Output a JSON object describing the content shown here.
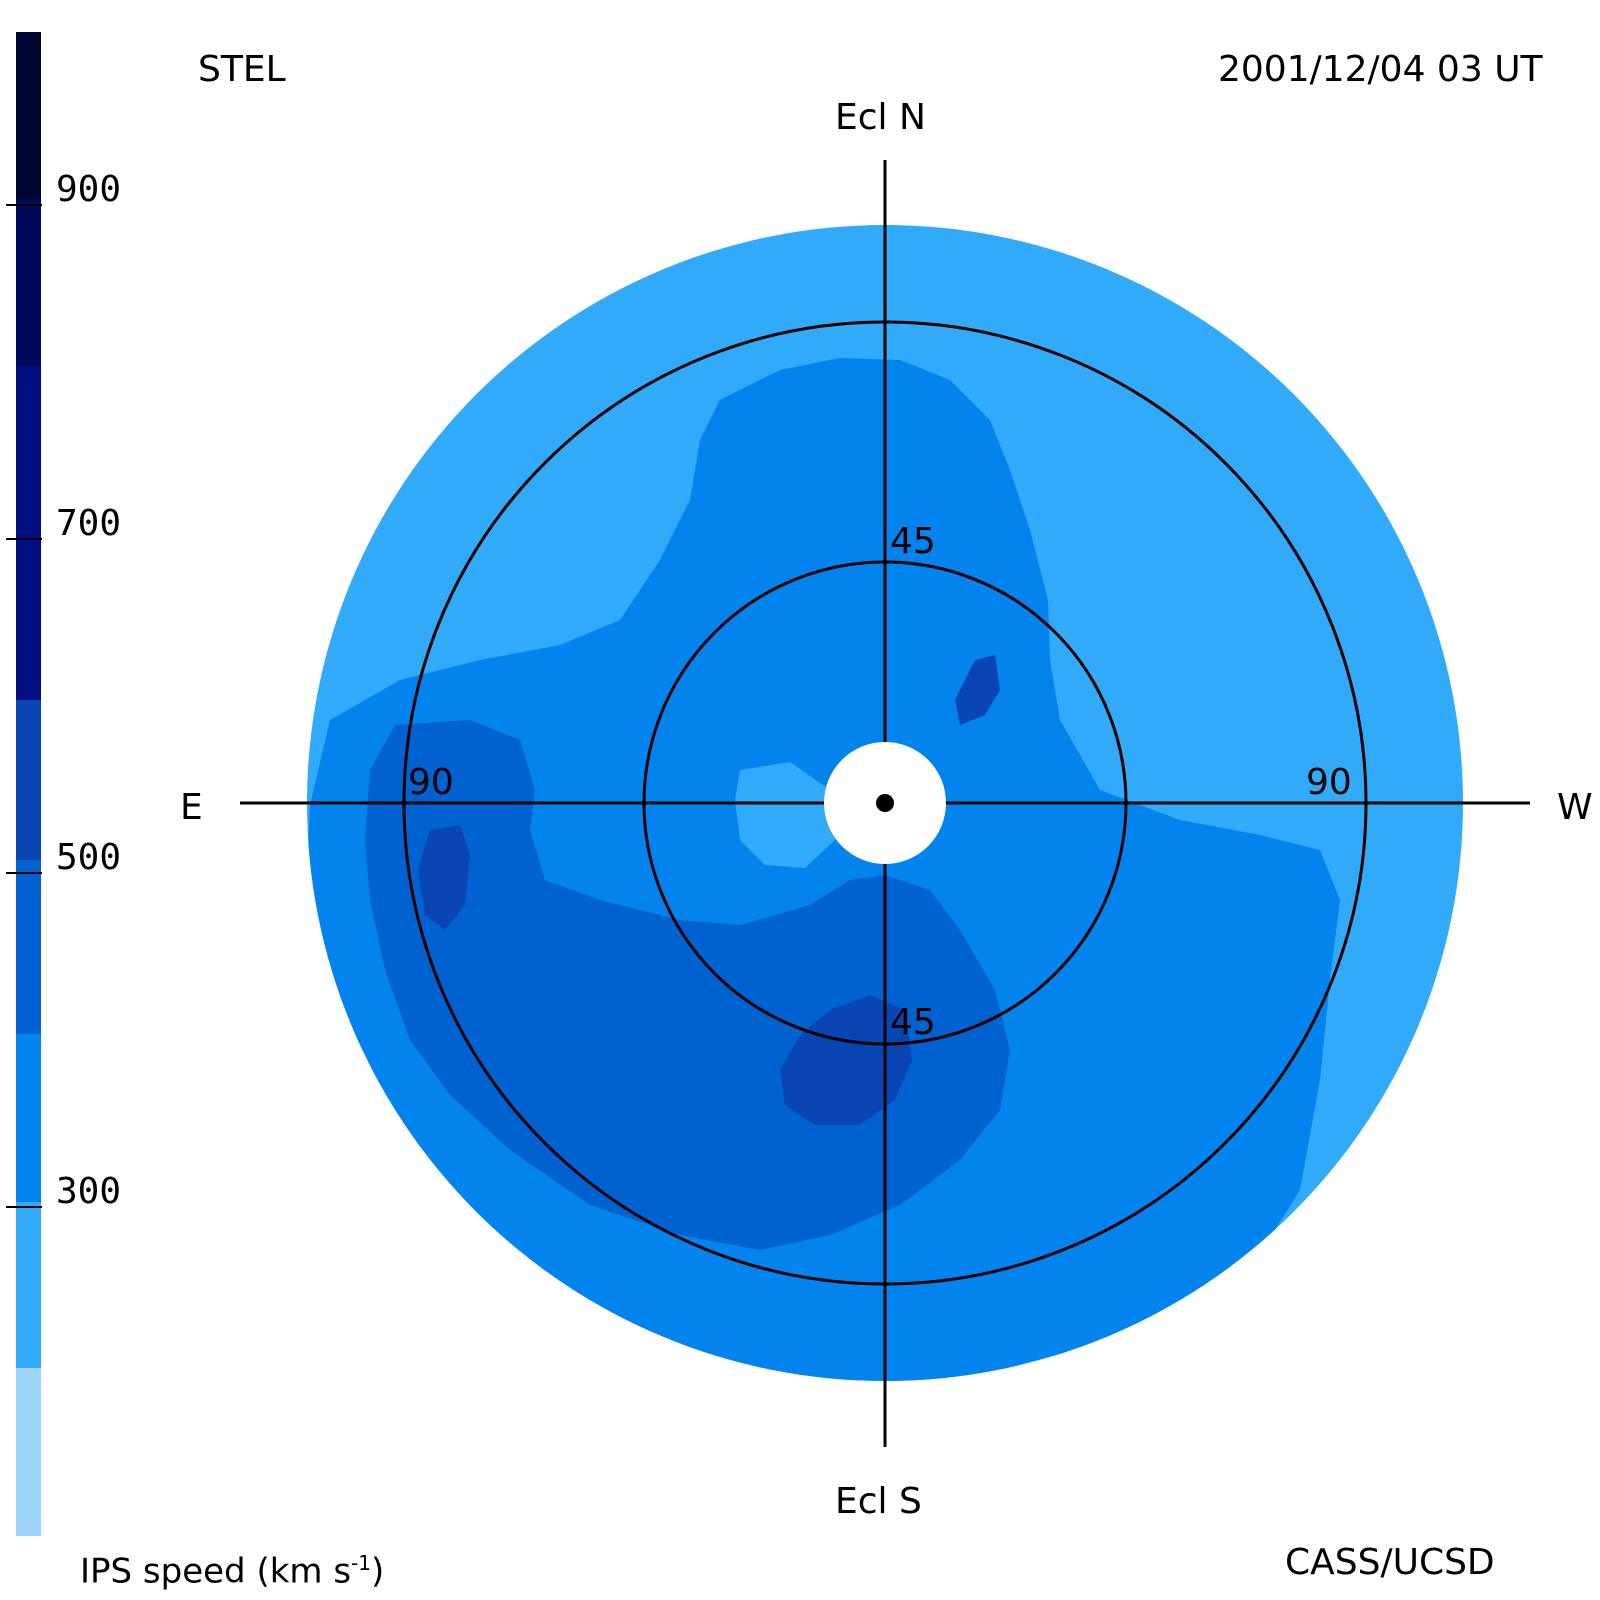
{
  "header": {
    "station": "STEL",
    "timestamp": "2001/12/04 03 UT"
  },
  "footer": {
    "credit": "CASS/UCSD"
  },
  "directions": {
    "north": "Ecl N",
    "south": "Ecl S",
    "east": "E",
    "west": "W"
  },
  "rings": {
    "inner_north": "45",
    "inner_south": "45",
    "outer_east": "90",
    "outer_west": "90"
  },
  "colorbar": {
    "label": "IPS speed (km s",
    "label_sup": "-1",
    "label_end": ")",
    "ticks": [
      "900",
      "700",
      "500",
      "300"
    ],
    "colors": [
      "#9ed6fb",
      "#31aaf9",
      "#0383ee",
      "#0062d1",
      "#0a45b4",
      "#020f82",
      "#01095d",
      "#00062f"
    ]
  },
  "map_palette": {
    "outer": "#31aaf9",
    "mid": "#0383ee",
    "fast": "#0062d1",
    "faster": "#0a45b4",
    "light": "#31aaf9"
  }
}
